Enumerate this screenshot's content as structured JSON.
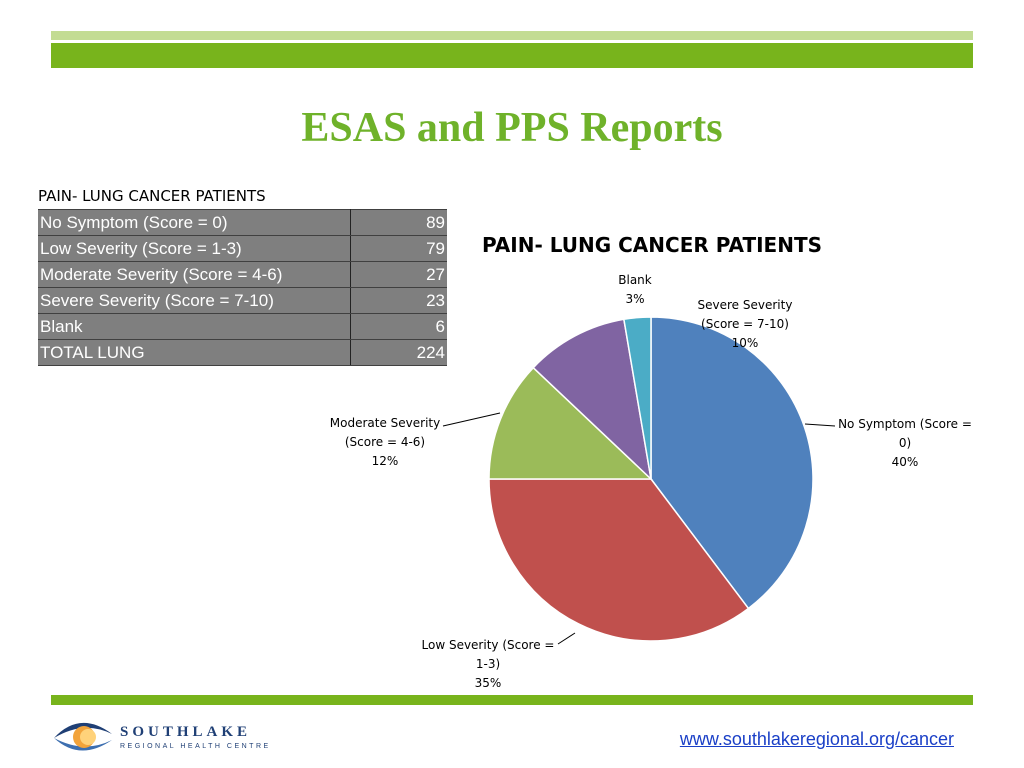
{
  "slide": {
    "title": "ESAS and PPS Reports",
    "footer_url": "www.southlakeregional.org/cancer"
  },
  "logo": {
    "name": "SOUTHLAKE",
    "subtitle": "REGIONAL HEALTH CENTRE"
  },
  "table": {
    "caption": "PAIN- LUNG CANCER PATIENTS",
    "rows": [
      {
        "label": "No Symptom (Score = 0)",
        "value": "89"
      },
      {
        "label": "Low Severity (Score = 1-3)",
        "value": "79"
      },
      {
        "label": "Moderate Severity (Score = 4-6)",
        "value": "27"
      },
      {
        "label": "Severe Severity (Score = 7-10)",
        "value": "23"
      },
      {
        "label": "Blank",
        "value": "6"
      },
      {
        "label": "TOTAL LUNG",
        "value": "224"
      }
    ]
  },
  "chart_data": {
    "type": "pie",
    "title": "PAIN- LUNG CANCER PATIENTS",
    "categories": [
      "No Symptom (Score = 0)",
      "Low Severity (Score = 1-3)",
      "Moderate Severity (Score = 4-6)",
      "Severe Severity (Score = 7-10)",
      "Blank"
    ],
    "values": [
      89,
      79,
      27,
      23,
      6
    ],
    "percent_labels": [
      "40%",
      "35%",
      "12%",
      "10%",
      "3%"
    ],
    "label_lines": [
      [
        "No Symptom (Score =",
        "0)",
        "40%"
      ],
      [
        "Low Severity (Score =",
        "1-3)",
        "35%"
      ],
      [
        "Moderate Severity",
        "(Score = 4-6)",
        "12%"
      ],
      [
        "Severe Severity",
        "(Score = 7-10)",
        "10%"
      ],
      [
        "Blank",
        "3%"
      ]
    ],
    "colors": [
      "#4f81bd",
      "#c0504d",
      "#9bbb59",
      "#8064a2",
      "#4bacc6"
    ],
    "legend": "none"
  },
  "colors": {
    "accent_green": "#78b41c",
    "light_green": "#c3dc93",
    "title_green": "#6fb22a",
    "table_bg": "#7f7f7f",
    "link_blue": "#1a3fc7"
  }
}
